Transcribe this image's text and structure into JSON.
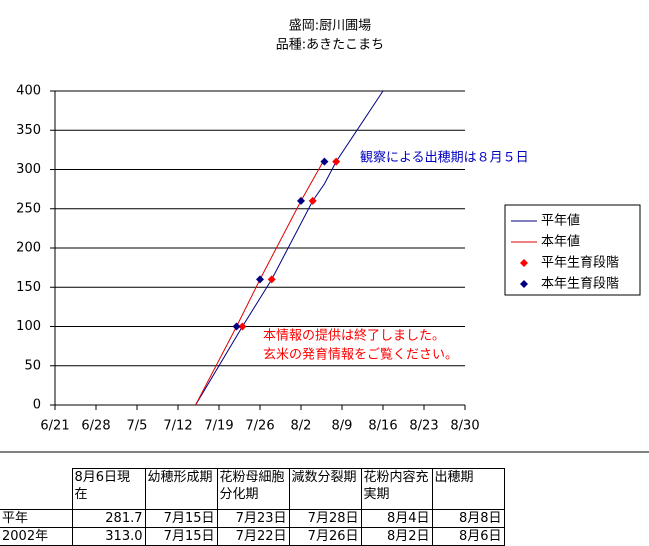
{
  "chart_data": {
    "type": "line",
    "title": "盛岡:厨川圃場",
    "subtitle": "品種:あきたこまち",
    "xlim": [
      172,
      242
    ],
    "xticks": [
      {
        "value": 172,
        "label": "6/21"
      },
      {
        "value": 179,
        "label": "6/28"
      },
      {
        "value": 186,
        "label": "7/5"
      },
      {
        "value": 193,
        "label": "7/12"
      },
      {
        "value": 200,
        "label": "7/19"
      },
      {
        "value": 207,
        "label": "7/26"
      },
      {
        "value": 214,
        "label": "8/2"
      },
      {
        "value": 221,
        "label": "8/9"
      },
      {
        "value": 228,
        "label": "8/16"
      },
      {
        "value": 235,
        "label": "8/23"
      },
      {
        "value": 242,
        "label": "8/30"
      }
    ],
    "ylim": [
      0,
      400
    ],
    "yticks": [
      0,
      50,
      100,
      150,
      200,
      250,
      300,
      350,
      400
    ],
    "grid": "y",
    "legend": "right",
    "series": [
      {
        "name": "平年値",
        "color": "#000080",
        "type": "line",
        "x": [
          196,
          204,
          209,
          216,
          218,
          220,
          228
        ],
        "values": [
          0,
          100,
          160,
          260,
          281.7,
          310,
          400
        ]
      },
      {
        "name": "本年値",
        "color": "#e00000",
        "type": "line",
        "x": [
          196,
          203,
          207,
          214,
          218
        ],
        "values": [
          0,
          100,
          160,
          260,
          313
        ]
      },
      {
        "name": "平年生育段階",
        "color": "#ff0000",
        "type": "scatter",
        "x": [
          204,
          209,
          216,
          220
        ],
        "values": [
          100,
          160,
          260,
          310
        ]
      },
      {
        "name": "本年生育段階",
        "color": "#000080",
        "type": "scatter",
        "x": [
          203,
          207,
          214,
          218
        ],
        "values": [
          100,
          160,
          260,
          310
        ]
      }
    ],
    "annotations": [
      {
        "text": "観察による出穂期は８月５日",
        "color": "#0000c0"
      },
      {
        "text": "本情報の提供は終了しました。",
        "color": "#ff0000"
      },
      {
        "text": "玄米の発育情報をご覧ください。",
        "color": "#ff0000"
      }
    ]
  },
  "table": {
    "header": [
      "8月6日現在",
      "幼穂形成期",
      "花粉母細胞分化期",
      "減数分裂期",
      "花粉内容充実期",
      "出穂期"
    ],
    "rows": [
      [
        "平年",
        "281.7",
        "7月15日",
        "7月23日",
        "7月28日",
        "8月4日",
        "8月8日"
      ],
      [
        "2002年",
        "313.0",
        "7月15日",
        "7月22日",
        "7月26日",
        "8月2日",
        "8月6日"
      ]
    ]
  }
}
